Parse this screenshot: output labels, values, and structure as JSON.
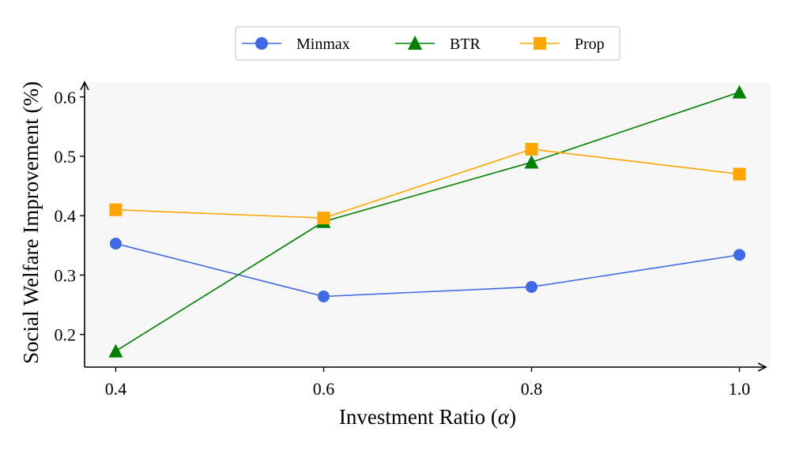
{
  "chart_data": {
    "type": "line",
    "title": "",
    "xlabel": "Investment Ratio (",
    "xlabel_symbol": "α",
    "xlabel_suffix": ")",
    "ylabel": "Social Welfare Improvement (%)",
    "x": [
      0.4,
      0.6,
      0.8,
      1.0
    ],
    "x_tick_labels": [
      "0.4",
      "0.6",
      "0.8",
      "1.0"
    ],
    "y_ticks": [
      0.2,
      0.3,
      0.4,
      0.5,
      0.6
    ],
    "y_tick_labels": [
      "0.2",
      "0.3",
      "0.4",
      "0.5",
      "0.6"
    ],
    "xlim": [
      0.37,
      1.03
    ],
    "ylim": [
      0.145,
      0.625
    ],
    "grid": false,
    "legend_position": "top-center",
    "series": [
      {
        "name": "Minmax",
        "marker": "circle",
        "color": "#4169E1",
        "values": [
          0.353,
          0.264,
          0.28,
          0.334
        ]
      },
      {
        "name": "BTR",
        "marker": "triangle",
        "color": "#008000",
        "values": [
          0.172,
          0.39,
          0.49,
          0.608
        ]
      },
      {
        "name": "Prop",
        "marker": "square",
        "color": "#FFA500",
        "values": [
          0.41,
          0.396,
          0.512,
          0.47
        ]
      }
    ]
  }
}
